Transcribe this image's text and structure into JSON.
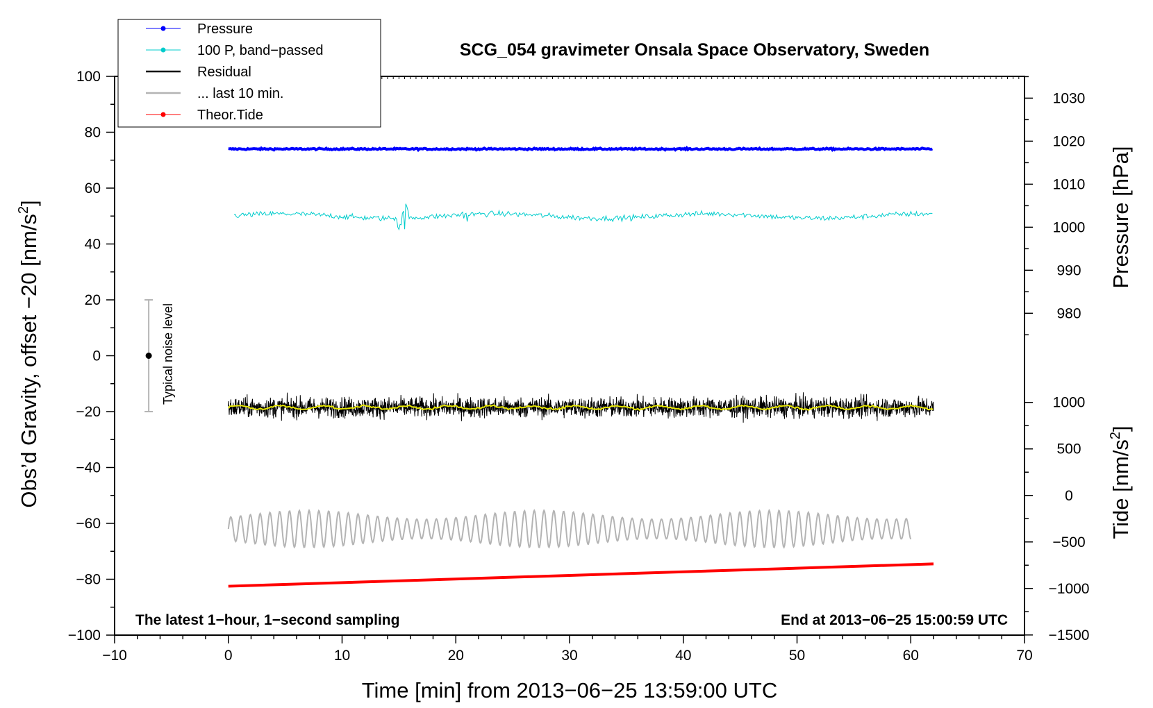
{
  "chart_data": {
    "type": "line",
    "title": "SCG_054 gravimeter Onsala Space Observatory, Sweden",
    "xlabel": "Time [min] from 2013−06−25 13:59:00 UTC",
    "ylabel_prefix": "Obs’d Gravity, offset −20 [nm/s",
    "ylabel_sup": "2",
    "ylabel_suffix": "]",
    "xlim": [
      -10,
      70
    ],
    "ylim": [
      -100,
      100
    ],
    "x_ticks": [
      -10,
      0,
      10,
      20,
      30,
      40,
      50,
      60,
      70
    ],
    "x_tick_labels": [
      "−10",
      "0",
      "10",
      "20",
      "30",
      "40",
      "50",
      "60",
      "70"
    ],
    "y_ticks": [
      -100,
      -80,
      -60,
      -40,
      -20,
      0,
      20,
      40,
      60,
      80,
      100
    ],
    "y_tick_labels": [
      "−100",
      "−80",
      "−60",
      "−40",
      "−20",
      "0",
      "20",
      "40",
      "60",
      "80",
      "100"
    ],
    "pressure_axis": {
      "label": "Pressure [hPa]",
      "ticks": [
        980,
        990,
        1000,
        1010,
        1020,
        1030
      ],
      "tick_labels": [
        "980",
        "990",
        "1000",
        "1010",
        "1020",
        "1030"
      ],
      "gravity_at_1000": 46,
      "gravity_per_hpa": 1.54
    },
    "tide_axis": {
      "label_prefix": "Tide [nm/s",
      "label_sup": "2",
      "label_suffix": "]",
      "ticks": [
        -1500,
        -1000,
        -500,
        0,
        500,
        1000
      ],
      "tick_labels": [
        "−1500",
        "−1000",
        "−500",
        "0",
        "500",
        "1000"
      ],
      "gravity_at_0": -50,
      "gravity_per_unit": 0.0333
    },
    "series": [
      {
        "name": "Pressure",
        "color": "#0000ff",
        "kind": "flat",
        "x": [
          0,
          62
        ],
        "y": [
          74,
          74
        ],
        "noise": 0.2
      },
      {
        "name": "100 P, band−passed",
        "color": "#00cccc",
        "kind": "noisy",
        "x_range": [
          0.5,
          62
        ],
        "center": 50,
        "noise": 0.7
      },
      {
        "name": "Residual",
        "color": "#000000",
        "kind": "noisy",
        "x_range": [
          0,
          62
        ],
        "center": -18.5,
        "noise": 2.6
      },
      {
        "name": "... last 10 min.",
        "color": "#b4b4b4",
        "kind": "oscillation",
        "x_range": [
          0,
          60
        ],
        "center": -62,
        "amplitude": 3.5
      },
      {
        "name": "Theor.Tide",
        "color": "#ff0000",
        "kind": "line",
        "x": [
          0,
          62
        ],
        "y": [
          -82.5,
          -74.5
        ]
      }
    ],
    "smoothed_residual_color": "#e6e600",
    "noise_bar": {
      "label": "Typical noise level",
      "x": -7,
      "y": 0,
      "low": -20,
      "high": 20
    },
    "annotation_left": "The latest 1−hour, 1−second sampling",
    "annotation_right": "End at 2013−06−25 15:00:59 UTC",
    "legend_position": "top-left"
  }
}
